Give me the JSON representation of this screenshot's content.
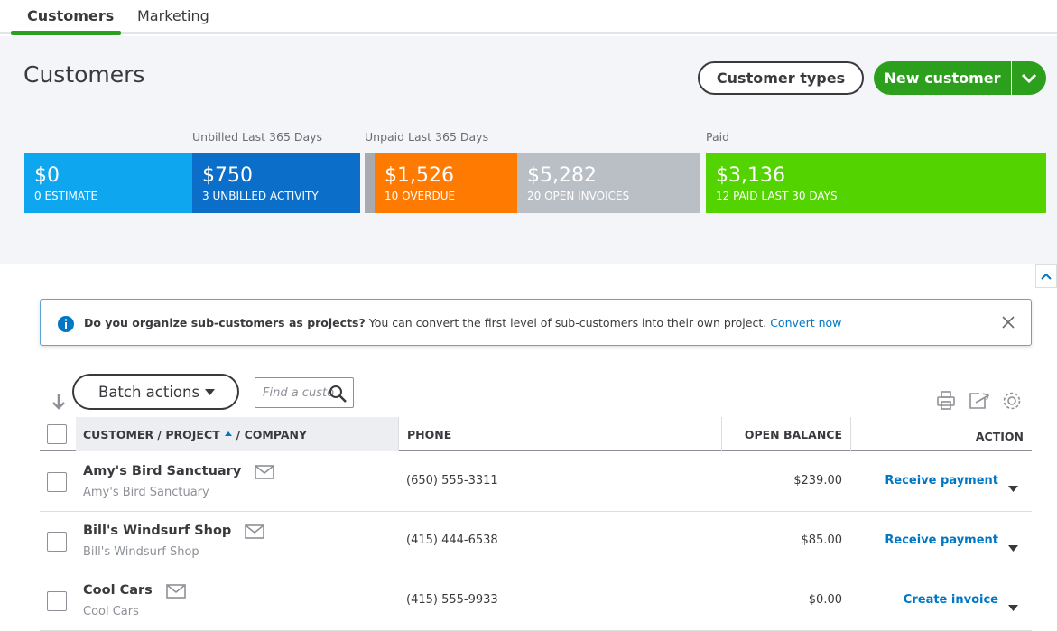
{
  "tabs": [
    "Customers",
    "Marketing"
  ],
  "header": {
    "title": "Customers",
    "customer_types": "Customer types",
    "new_customer": "New customer"
  },
  "money_bar": {
    "groups": [
      "Unbilled Last 365 Days",
      "Unpaid Last 365 Days",
      "Paid"
    ],
    "tiles": [
      {
        "amount": "$0",
        "label": "0 ESTIMATE"
      },
      {
        "amount": "$750",
        "label": "3 UNBILLED ACTIVITY"
      },
      {
        "amount": "$1,526",
        "label": "10 OVERDUE"
      },
      {
        "amount": "$5,282",
        "label": "20 OPEN INVOICES"
      },
      {
        "amount": "$3,136",
        "label": "12 PAID LAST 30 DAYS"
      }
    ]
  },
  "banner": {
    "question": "Do you organize sub-customers as projects?",
    "text": "You can convert the first level of sub-customers into their own project.",
    "link": "Convert now"
  },
  "toolbar": {
    "batch_actions": "Batch actions",
    "search_placeholder": "Find a custo"
  },
  "table": {
    "headers": {
      "customer": "CUSTOMER / PROJECT",
      "company": "/ COMPANY",
      "phone": "PHONE",
      "balance": "OPEN BALANCE",
      "action": "ACTION"
    },
    "rows": [
      {
        "name": "Amy's Bird Sanctuary",
        "company": "Amy's Bird Sanctuary",
        "phone": "(650) 555-3311",
        "balance": "$239.00",
        "action": "Receive payment"
      },
      {
        "name": "Bill's Windsurf Shop",
        "company": "Bill's Windsurf Shop",
        "phone": "(415) 444-6538",
        "balance": "$85.00",
        "action": "Receive payment"
      },
      {
        "name": "Cool Cars",
        "company": "Cool Cars",
        "phone": "(415) 555-9933",
        "balance": "$0.00",
        "action": "Create invoice"
      }
    ]
  }
}
